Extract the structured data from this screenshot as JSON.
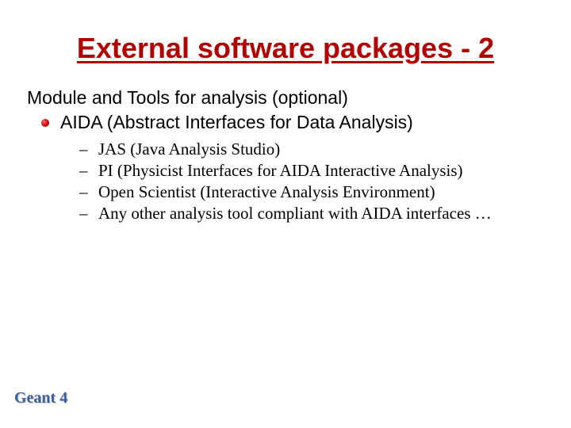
{
  "title": "External software packages - 2",
  "section_heading": "Module and Tools for analysis (optional)",
  "bullet": {
    "text": "AIDA (Abstract Interfaces for Data Analysis)"
  },
  "subitems": [
    "JAS (Java Analysis Studio)",
    "PI (Physicist Interfaces for AIDA Interactive Analysis)",
    "Open Scientist (Interactive Analysis Environment)",
    "Any other analysis tool compliant with AIDA interfaces …"
  ],
  "footer": "Geant 4",
  "colors": {
    "title_color": "#b00000",
    "body_text_color": "#000000",
    "footer_color": "#3a5fa0",
    "background": "#ffffff"
  },
  "typography": {
    "title_font": "Comic Sans MS",
    "title_size_pt": 28,
    "body_font": "Arial",
    "body_size_pt": 18,
    "sub_font": "Times New Roman",
    "sub_size_pt": 16,
    "footer_font": "Times New Roman",
    "footer_size_pt": 15
  }
}
